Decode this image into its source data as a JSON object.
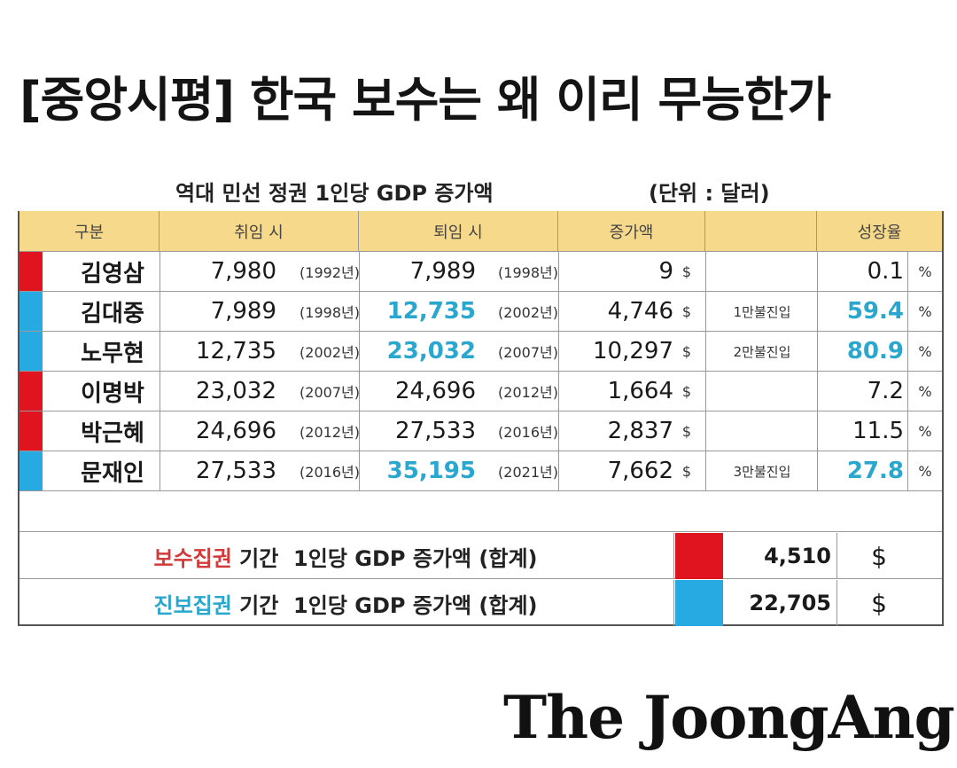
{
  "headline": "[중앙시평] 한국 보수는 왜 이리 무능한가",
  "table_title": "역대 민선 정권 1인당 GDP 증가액",
  "unit": "(단위 : 달러)",
  "colors": {
    "conservative": "#e0141e",
    "progressive": "#27a9e1",
    "header_bg": "#f7d98b",
    "highlight": "#2aa7cf"
  },
  "headers": {
    "category": "구분",
    "start": "취임 시",
    "end": "퇴임 시",
    "increase": "증가액",
    "growth": "성장율"
  },
  "rows": [
    {
      "name": "김영삼",
      "camp": "conservative",
      "start": "7,980",
      "start_year": "(1992년)",
      "end": "7,989",
      "end_year": "(1998년)",
      "end_highlight": false,
      "increase": "9",
      "currency": "$",
      "note": "",
      "growth": "0.1",
      "growth_highlight": false,
      "pct": "%"
    },
    {
      "name": "김대중",
      "camp": "progressive",
      "start": "7,989",
      "start_year": "(1998년)",
      "end": "12,735",
      "end_year": "(2002년)",
      "end_highlight": true,
      "increase": "4,746",
      "currency": "$",
      "note": "1만불진입",
      "growth": "59.4",
      "growth_highlight": true,
      "pct": "%"
    },
    {
      "name": "노무현",
      "camp": "progressive",
      "start": "12,735",
      "start_year": "(2002년)",
      "end": "23,032",
      "end_year": "(2007년)",
      "end_highlight": true,
      "increase": "10,297",
      "currency": "$",
      "note": "2만불진입",
      "growth": "80.9",
      "growth_highlight": true,
      "pct": "%"
    },
    {
      "name": "이명박",
      "camp": "conservative",
      "start": "23,032",
      "start_year": "(2007년)",
      "end": "24,696",
      "end_year": "(2012년)",
      "end_highlight": false,
      "increase": "1,664",
      "currency": "$",
      "note": "",
      "growth": "7.2",
      "growth_highlight": false,
      "pct": "%"
    },
    {
      "name": "박근혜",
      "camp": "conservative",
      "start": "24,696",
      "start_year": "(2012년)",
      "end": "27,533",
      "end_year": "(2016년)",
      "end_highlight": false,
      "increase": "2,837",
      "currency": "$",
      "note": "",
      "growth": "11.5",
      "growth_highlight": false,
      "pct": "%"
    },
    {
      "name": "문재인",
      "camp": "progressive",
      "start": "27,533",
      "start_year": "(2016년)",
      "end": "35,195",
      "end_year": "(2021년)",
      "end_highlight": true,
      "increase": "7,662",
      "currency": "$",
      "note": "3만불진입",
      "growth": "27.8",
      "growth_highlight": true,
      "pct": "%"
    }
  ],
  "summary": [
    {
      "camp_label": "보수집권",
      "camp": "conservative",
      "rest": " 기간  1인당 GDP 증가액 (합계)",
      "value": "4,510",
      "currency": "$"
    },
    {
      "camp_label": "진보집권",
      "camp": "progressive",
      "rest": " 기간  1인당 GDP 증가액 (합계)",
      "value": "22,705",
      "currency": "$"
    }
  ],
  "logo": "The JoongAng"
}
